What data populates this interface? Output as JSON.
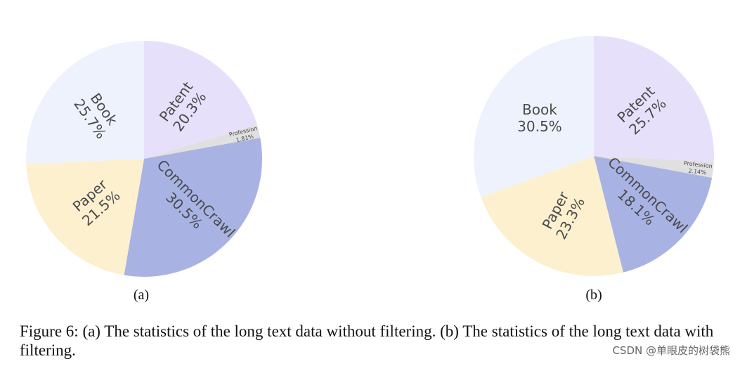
{
  "chart_data": [
    {
      "type": "pie",
      "subtitle": "(a)",
      "start_angle_deg": 90,
      "direction": "clockwise",
      "slices": [
        {
          "label": "Patent",
          "value": 20.3,
          "value_text": "20.3%",
          "color": "#e6e0fb"
        },
        {
          "label": "Profession",
          "value": 1.81,
          "value_text": "1.81%",
          "color": "#e0e0e0"
        },
        {
          "label": "CommonCrawl",
          "value": 30.5,
          "value_text": "30.5%",
          "color": "#a8b3e4"
        },
        {
          "label": "Paper",
          "value": 21.5,
          "value_text": "21.5%",
          "color": "#fdf0cf"
        },
        {
          "label": "Book",
          "value": 25.7,
          "value_text": "25.7%",
          "color": "#eef2fc"
        }
      ]
    },
    {
      "type": "pie",
      "subtitle": "(b)",
      "start_angle_deg": 90,
      "direction": "clockwise",
      "slices": [
        {
          "label": "Patent",
          "value": 25.7,
          "value_text": "25.7%",
          "color": "#e6e0fb"
        },
        {
          "label": "Profession",
          "value": 2.14,
          "value_text": "2.14%",
          "color": "#e0e0e0"
        },
        {
          "label": "CommonCrawl",
          "value": 18.1,
          "value_text": "18.1%",
          "color": "#a8b3e4"
        },
        {
          "label": "Paper",
          "value": 23.3,
          "value_text": "23.3%",
          "color": "#fdf0cf"
        },
        {
          "label": "Book",
          "value": 30.5,
          "value_text": "30.5%",
          "color": "#eef2fc"
        }
      ]
    }
  ],
  "caption": "Figure 6: (a) The statistics of the long text data without filtering. (b) The statistics of the long text data with filtering.",
  "watermark": "CSDN @单眼皮的树袋熊"
}
